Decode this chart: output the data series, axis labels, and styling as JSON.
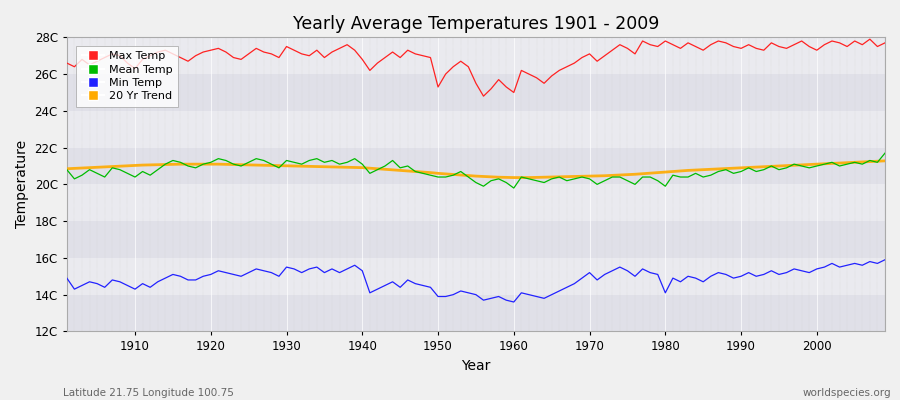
{
  "title": "Yearly Average Temperatures 1901 - 2009",
  "xlabel": "Year",
  "ylabel": "Temperature",
  "years": [
    1901,
    1902,
    1903,
    1904,
    1905,
    1906,
    1907,
    1908,
    1909,
    1910,
    1911,
    1912,
    1913,
    1914,
    1915,
    1916,
    1917,
    1918,
    1919,
    1920,
    1921,
    1922,
    1923,
    1924,
    1925,
    1926,
    1927,
    1928,
    1929,
    1930,
    1931,
    1932,
    1933,
    1934,
    1935,
    1936,
    1937,
    1938,
    1939,
    1940,
    1941,
    1942,
    1943,
    1944,
    1945,
    1946,
    1947,
    1948,
    1949,
    1950,
    1951,
    1952,
    1953,
    1954,
    1955,
    1956,
    1957,
    1958,
    1959,
    1960,
    1961,
    1962,
    1963,
    1964,
    1965,
    1966,
    1967,
    1968,
    1969,
    1970,
    1971,
    1972,
    1973,
    1974,
    1975,
    1976,
    1977,
    1978,
    1979,
    1980,
    1981,
    1982,
    1983,
    1984,
    1985,
    1986,
    1987,
    1988,
    1989,
    1990,
    1991,
    1992,
    1993,
    1994,
    1995,
    1996,
    1997,
    1998,
    1999,
    2000,
    2001,
    2002,
    2003,
    2004,
    2005,
    2006,
    2007,
    2008,
    2009
  ],
  "max_temp": [
    26.6,
    26.4,
    26.8,
    26.5,
    26.7,
    26.9,
    27.1,
    27.0,
    26.6,
    26.3,
    26.8,
    27.0,
    27.2,
    27.3,
    27.1,
    26.9,
    26.7,
    27.0,
    27.2,
    27.3,
    27.4,
    27.2,
    26.9,
    26.8,
    27.1,
    27.4,
    27.2,
    27.1,
    26.9,
    27.5,
    27.3,
    27.1,
    27.0,
    27.3,
    26.9,
    27.2,
    27.4,
    27.6,
    27.3,
    26.8,
    26.2,
    26.6,
    26.9,
    27.2,
    26.9,
    27.3,
    27.1,
    27.0,
    26.9,
    25.3,
    26.0,
    26.4,
    26.7,
    26.4,
    25.5,
    24.8,
    25.2,
    25.7,
    25.3,
    25.0,
    26.2,
    26.0,
    25.8,
    25.5,
    25.9,
    26.2,
    26.4,
    26.6,
    26.9,
    27.1,
    26.7,
    27.0,
    27.3,
    27.6,
    27.4,
    27.1,
    27.8,
    27.6,
    27.5,
    27.8,
    27.6,
    27.4,
    27.7,
    27.5,
    27.3,
    27.6,
    27.8,
    27.7,
    27.5,
    27.4,
    27.6,
    27.4,
    27.3,
    27.7,
    27.5,
    27.4,
    27.6,
    27.8,
    27.5,
    27.3,
    27.6,
    27.8,
    27.7,
    27.5,
    27.8,
    27.6,
    27.9,
    27.5,
    27.7
  ],
  "mean_temp": [
    20.8,
    20.3,
    20.5,
    20.8,
    20.6,
    20.4,
    20.9,
    20.8,
    20.6,
    20.4,
    20.7,
    20.5,
    20.8,
    21.1,
    21.3,
    21.2,
    21.0,
    20.9,
    21.1,
    21.2,
    21.4,
    21.3,
    21.1,
    21.0,
    21.2,
    21.4,
    21.3,
    21.1,
    20.9,
    21.3,
    21.2,
    21.1,
    21.3,
    21.4,
    21.2,
    21.3,
    21.1,
    21.2,
    21.4,
    21.1,
    20.6,
    20.8,
    21.0,
    21.3,
    20.9,
    21.0,
    20.7,
    20.6,
    20.5,
    20.4,
    20.4,
    20.5,
    20.7,
    20.4,
    20.1,
    19.9,
    20.2,
    20.3,
    20.1,
    19.8,
    20.4,
    20.3,
    20.2,
    20.1,
    20.3,
    20.4,
    20.2,
    20.3,
    20.4,
    20.3,
    20.0,
    20.2,
    20.4,
    20.4,
    20.2,
    20.0,
    20.4,
    20.4,
    20.2,
    19.9,
    20.5,
    20.4,
    20.4,
    20.6,
    20.4,
    20.5,
    20.7,
    20.8,
    20.6,
    20.7,
    20.9,
    20.7,
    20.8,
    21.0,
    20.8,
    20.9,
    21.1,
    21.0,
    20.9,
    21.0,
    21.1,
    21.2,
    21.0,
    21.1,
    21.2,
    21.1,
    21.3,
    21.2,
    21.7
  ],
  "min_temp": [
    14.9,
    14.3,
    14.5,
    14.7,
    14.6,
    14.4,
    14.8,
    14.7,
    14.5,
    14.3,
    14.6,
    14.4,
    14.7,
    14.9,
    15.1,
    15.0,
    14.8,
    14.8,
    15.0,
    15.1,
    15.3,
    15.2,
    15.1,
    15.0,
    15.2,
    15.4,
    15.3,
    15.2,
    15.0,
    15.5,
    15.4,
    15.2,
    15.4,
    15.5,
    15.2,
    15.4,
    15.2,
    15.4,
    15.6,
    15.3,
    14.1,
    14.3,
    14.5,
    14.7,
    14.4,
    14.8,
    14.6,
    14.5,
    14.4,
    13.9,
    13.9,
    14.0,
    14.2,
    14.1,
    14.0,
    13.7,
    13.8,
    13.9,
    13.7,
    13.6,
    14.1,
    14.0,
    13.9,
    13.8,
    14.0,
    14.2,
    14.4,
    14.6,
    14.9,
    15.2,
    14.8,
    15.1,
    15.3,
    15.5,
    15.3,
    15.0,
    15.4,
    15.2,
    15.1,
    14.1,
    14.9,
    14.7,
    15.0,
    14.9,
    14.7,
    15.0,
    15.2,
    15.1,
    14.9,
    15.0,
    15.2,
    15.0,
    15.1,
    15.3,
    15.1,
    15.2,
    15.4,
    15.3,
    15.2,
    15.4,
    15.5,
    15.7,
    15.5,
    15.6,
    15.7,
    15.6,
    15.8,
    15.7,
    15.9
  ],
  "trend_temp": [
    20.85,
    20.87,
    20.89,
    20.91,
    20.93,
    20.95,
    20.97,
    20.99,
    21.01,
    21.03,
    21.05,
    21.06,
    21.07,
    21.08,
    21.09,
    21.1,
    21.1,
    21.1,
    21.1,
    21.1,
    21.1,
    21.09,
    21.08,
    21.07,
    21.06,
    21.05,
    21.04,
    21.03,
    21.02,
    21.01,
    21.0,
    20.99,
    20.98,
    20.97,
    20.96,
    20.95,
    20.94,
    20.93,
    20.92,
    20.91,
    20.88,
    20.85,
    20.82,
    20.79,
    20.76,
    20.73,
    20.7,
    20.67,
    20.64,
    20.6,
    20.57,
    20.54,
    20.51,
    20.48,
    20.45,
    20.43,
    20.41,
    20.39,
    20.38,
    20.37,
    20.37,
    20.37,
    20.38,
    20.39,
    20.4,
    20.41,
    20.42,
    20.43,
    20.44,
    20.45,
    20.46,
    20.47,
    20.49,
    20.51,
    20.53,
    20.55,
    20.58,
    20.61,
    20.64,
    20.67,
    20.7,
    20.73,
    20.76,
    20.78,
    20.8,
    20.82,
    20.84,
    20.86,
    20.88,
    20.9,
    20.92,
    20.94,
    20.96,
    20.98,
    21.0,
    21.02,
    21.04,
    21.06,
    21.08,
    21.1,
    21.12,
    21.14,
    21.16,
    21.18,
    21.2,
    21.22,
    21.24,
    21.26,
    21.28
  ],
  "ylim": [
    12,
    28
  ],
  "yticks": [
    12,
    14,
    16,
    18,
    20,
    22,
    24,
    26,
    28
  ],
  "ytick_labels": [
    "12C",
    "14C",
    "16C",
    "18C",
    "20C",
    "22C",
    "24C",
    "26C",
    "28C"
  ],
  "xticks": [
    1910,
    1920,
    1930,
    1940,
    1950,
    1960,
    1970,
    1980,
    1990,
    2000
  ],
  "color_max": "#ff2222",
  "color_mean": "#00bb00",
  "color_min": "#2222ff",
  "color_trend": "#ffaa00",
  "color_fig_bg": "#f0f0f0",
  "color_plot_bg": "#e8e8ee",
  "color_band1": "#e0e0e8",
  "color_band2": "#eaeaef",
  "footnote_left": "Latitude 21.75 Longitude 100.75",
  "footnote_right": "worldspecies.org",
  "legend_labels": [
    "Max Temp",
    "Mean Temp",
    "Min Temp",
    "20 Yr Trend"
  ]
}
